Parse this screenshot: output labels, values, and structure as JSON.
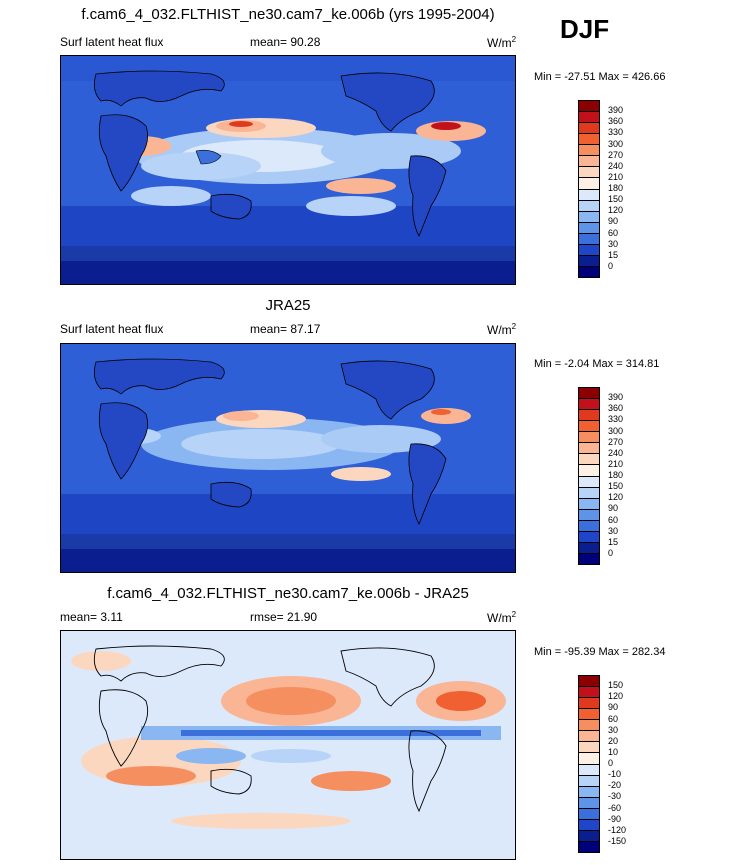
{
  "figure": {
    "title": "f.cam6_4_032.FLTHIST_ne30.cam7_ke.006b (yrs 1995-2004)",
    "season": "DJF"
  },
  "panels": [
    {
      "title": "",
      "left_label": "Surf latent heat flux",
      "center_label": "mean=  90.28",
      "units": "W/m",
      "units_exp": "2",
      "minmax": "Min = -27.51 Max = 426.66",
      "colorbar": {
        "labels": [
          "390",
          "360",
          "330",
          "300",
          "270",
          "240",
          "210",
          "180",
          "150",
          "120",
          "90",
          "60",
          "30",
          "15",
          "0"
        ],
        "colors": [
          "#8b0000",
          "#c1121c",
          "#e03a1e",
          "#f06030",
          "#f58f5f",
          "#f9b594",
          "#fcd7bf",
          "#fdf1e6",
          "#dce9fb",
          "#b7d3f7",
          "#8ab6f1",
          "#5d94e8",
          "#3a6fdc",
          "#1f46c8",
          "#0a1e8f",
          "#00007a"
        ]
      }
    },
    {
      "title": "JRA25",
      "left_label": "Surf latent heat flux",
      "center_label": "mean=  87.17",
      "units": "W/m",
      "units_exp": "2",
      "minmax": "Min =  -2.04 Max = 314.81",
      "colorbar": {
        "labels": [
          "390",
          "360",
          "330",
          "300",
          "270",
          "240",
          "210",
          "180",
          "150",
          "120",
          "90",
          "60",
          "30",
          "15",
          "0"
        ],
        "colors": [
          "#8b0000",
          "#c1121c",
          "#e03a1e",
          "#f06030",
          "#f58f5f",
          "#f9b594",
          "#fcd7bf",
          "#fdf1e6",
          "#dce9fb",
          "#b7d3f7",
          "#8ab6f1",
          "#5d94e8",
          "#3a6fdc",
          "#1f46c8",
          "#0a1e8f",
          "#00007a"
        ]
      }
    },
    {
      "title": "f.cam6_4_032.FLTHIST_ne30.cam7_ke.006b - JRA25",
      "left_label": "mean=   3.11",
      "center_label": "rmse=  21.90",
      "units": "W/m",
      "units_exp": "2",
      "minmax": "Min = -95.39 Max = 282.34",
      "colorbar": {
        "labels": [
          "150",
          "120",
          "90",
          "60",
          "30",
          "20",
          "10",
          "0",
          "-10",
          "-20",
          "-30",
          "-60",
          "-90",
          "-120",
          "-150"
        ],
        "colors": [
          "#8b0000",
          "#c1121c",
          "#e03a1e",
          "#f06030",
          "#f58f5f",
          "#f9b594",
          "#fcd7bf",
          "#fdf1e6",
          "#dce9fb",
          "#b7d3f7",
          "#8ab6f1",
          "#5d94e8",
          "#3a6fdc",
          "#1f46c8",
          "#0a1e8f",
          "#00007a"
        ]
      }
    }
  ]
}
